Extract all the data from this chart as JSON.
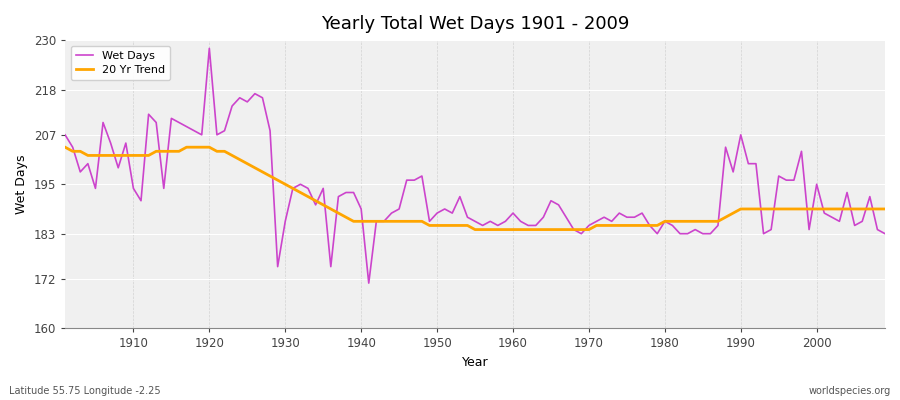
{
  "title": "Yearly Total Wet Days 1901 - 2009",
  "xlabel": "Year",
  "ylabel": "Wet Days",
  "subtitle_left": "Latitude 55.75 Longitude -2.25",
  "subtitle_right": "worldspecies.org",
  "legend_wet": "Wet Days",
  "legend_trend": "20 Yr Trend",
  "wet_color": "#CC44CC",
  "trend_color": "#FFA500",
  "fig_bg_color": "#FFFFFF",
  "plot_bg": "#F0F0F0",
  "ylim": [
    160,
    230
  ],
  "yticks": [
    160,
    172,
    183,
    195,
    207,
    218,
    230
  ],
  "years": [
    1901,
    1902,
    1903,
    1904,
    1905,
    1906,
    1907,
    1908,
    1909,
    1910,
    1911,
    1912,
    1913,
    1914,
    1915,
    1916,
    1917,
    1918,
    1919,
    1920,
    1921,
    1922,
    1923,
    1924,
    1925,
    1926,
    1927,
    1928,
    1929,
    1930,
    1931,
    1932,
    1933,
    1934,
    1935,
    1936,
    1937,
    1938,
    1939,
    1940,
    1941,
    1942,
    1943,
    1944,
    1945,
    1946,
    1947,
    1948,
    1949,
    1950,
    1951,
    1952,
    1953,
    1954,
    1955,
    1956,
    1957,
    1958,
    1959,
    1960,
    1961,
    1962,
    1963,
    1964,
    1965,
    1966,
    1967,
    1968,
    1969,
    1970,
    1971,
    1972,
    1973,
    1974,
    1975,
    1976,
    1977,
    1978,
    1979,
    1980,
    1981,
    1982,
    1983,
    1984,
    1985,
    1986,
    1987,
    1988,
    1989,
    1990,
    1991,
    1992,
    1993,
    1994,
    1995,
    1996,
    1997,
    1998,
    1999,
    2000,
    2001,
    2002,
    2003,
    2004,
    2005,
    2006,
    2007,
    2008,
    2009
  ],
  "wet_days": [
    207,
    204,
    198,
    200,
    194,
    210,
    205,
    199,
    205,
    194,
    191,
    212,
    210,
    194,
    211,
    210,
    209,
    208,
    207,
    228,
    207,
    208,
    214,
    216,
    215,
    217,
    216,
    208,
    175,
    186,
    194,
    195,
    194,
    190,
    194,
    175,
    192,
    193,
    193,
    189,
    171,
    186,
    186,
    188,
    189,
    196,
    196,
    197,
    186,
    188,
    189,
    188,
    192,
    187,
    186,
    185,
    186,
    185,
    186,
    188,
    186,
    185,
    185,
    187,
    191,
    190,
    187,
    184,
    183,
    185,
    186,
    187,
    186,
    188,
    187,
    187,
    188,
    185,
    183,
    186,
    185,
    183,
    183,
    184,
    183,
    183,
    185,
    204,
    198,
    207,
    200,
    200,
    183,
    184,
    197,
    196,
    196,
    203,
    184,
    195,
    188,
    187,
    186,
    193,
    185,
    186,
    192,
    184,
    183
  ],
  "trend": [
    204,
    203,
    203,
    202,
    202,
    202,
    202,
    202,
    202,
    202,
    202,
    202,
    203,
    203,
    203,
    203,
    204,
    204,
    204,
    204,
    203,
    203,
    202,
    201,
    200,
    199,
    198,
    197,
    196,
    195,
    194,
    193,
    192,
    191,
    190,
    189,
    188,
    187,
    186,
    186,
    186,
    186,
    186,
    186,
    186,
    186,
    186,
    186,
    185,
    185,
    185,
    185,
    185,
    185,
    184,
    184,
    184,
    184,
    184,
    184,
    184,
    184,
    184,
    184,
    184,
    184,
    184,
    184,
    184,
    184,
    185,
    185,
    185,
    185,
    185,
    185,
    185,
    185,
    185,
    186,
    186,
    186,
    186,
    186,
    186,
    186,
    186,
    187,
    188,
    189,
    189,
    189,
    189,
    189,
    189,
    189,
    189,
    189,
    189,
    189,
    189,
    189,
    189,
    189,
    189,
    189,
    189,
    189,
    189
  ]
}
